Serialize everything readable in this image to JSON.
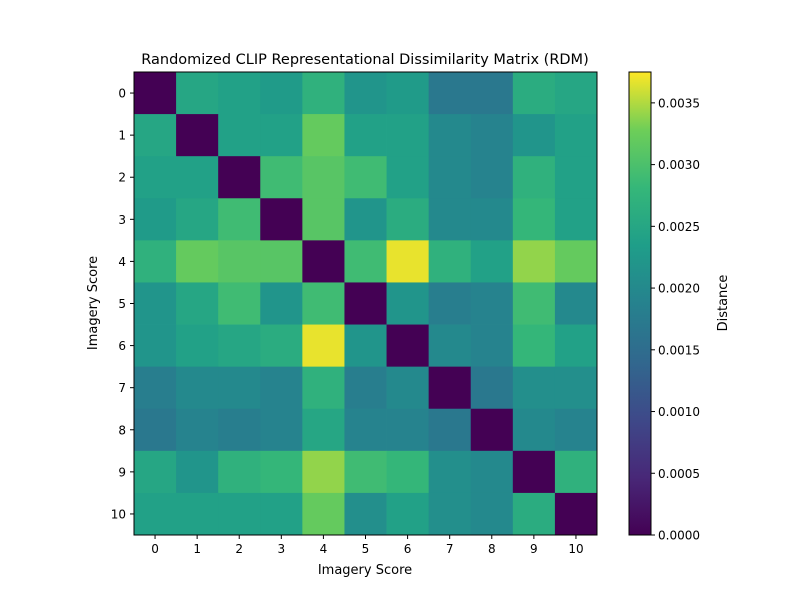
{
  "chart_data": {
    "type": "heatmap",
    "title": "Randomized CLIP Representational Dissimilarity Matrix (RDM)",
    "xlabel": "Imagery Score",
    "ylabel": "Imagery Score",
    "categories": [
      "0",
      "1",
      "2",
      "3",
      "4",
      "5",
      "6",
      "7",
      "8",
      "9",
      "10"
    ],
    "colormap": "viridis",
    "colorbar": {
      "label": "Distance",
      "min": 0.0,
      "max": 0.00375,
      "ticks": [
        0.0,
        0.0005,
        0.001,
        0.0015,
        0.002,
        0.0025,
        0.003,
        0.0035
      ],
      "tick_labels": [
        "0.0000",
        "0.0005",
        "0.0010",
        "0.0015",
        "0.0020",
        "0.0025",
        "0.0030",
        "0.0035"
      ]
    },
    "values": [
      [
        0.0,
        0.0025,
        0.0024,
        0.0023,
        0.0027,
        0.0022,
        0.0023,
        0.0017,
        0.0017,
        0.0026,
        0.0025
      ],
      [
        0.0025,
        0.0,
        0.0024,
        0.0024,
        0.0032,
        0.0024,
        0.0024,
        0.002,
        0.0019,
        0.0022,
        0.0024
      ],
      [
        0.0024,
        0.0024,
        0.0,
        0.0029,
        0.0031,
        0.0029,
        0.0024,
        0.002,
        0.0019,
        0.0027,
        0.0024
      ],
      [
        0.0023,
        0.0025,
        0.0029,
        0.0,
        0.0031,
        0.0022,
        0.0026,
        0.002,
        0.002,
        0.0028,
        0.0024
      ],
      [
        0.0027,
        0.0032,
        0.0031,
        0.0031,
        0.0,
        0.0029,
        0.00368,
        0.0027,
        0.0024,
        0.0034,
        0.0032
      ],
      [
        0.0022,
        0.0025,
        0.0029,
        0.0022,
        0.0029,
        0.0,
        0.0022,
        0.0018,
        0.0019,
        0.0029,
        0.002
      ],
      [
        0.0022,
        0.0024,
        0.0025,
        0.0026,
        0.00368,
        0.0022,
        0.0,
        0.002,
        0.0019,
        0.0028,
        0.0024
      ],
      [
        0.0018,
        0.002,
        0.002,
        0.0019,
        0.0027,
        0.0018,
        0.002,
        0.0,
        0.0017,
        0.0021,
        0.0021
      ],
      [
        0.0017,
        0.0019,
        0.0018,
        0.0019,
        0.0025,
        0.0019,
        0.0019,
        0.0017,
        0.0,
        0.002,
        0.0019
      ],
      [
        0.0025,
        0.0022,
        0.0027,
        0.0028,
        0.0034,
        0.0029,
        0.0028,
        0.0021,
        0.002,
        0.0,
        0.0027
      ],
      [
        0.0024,
        0.0024,
        0.0024,
        0.0024,
        0.0032,
        0.0021,
        0.0024,
        0.0021,
        0.002,
        0.0026,
        0.0
      ]
    ]
  }
}
